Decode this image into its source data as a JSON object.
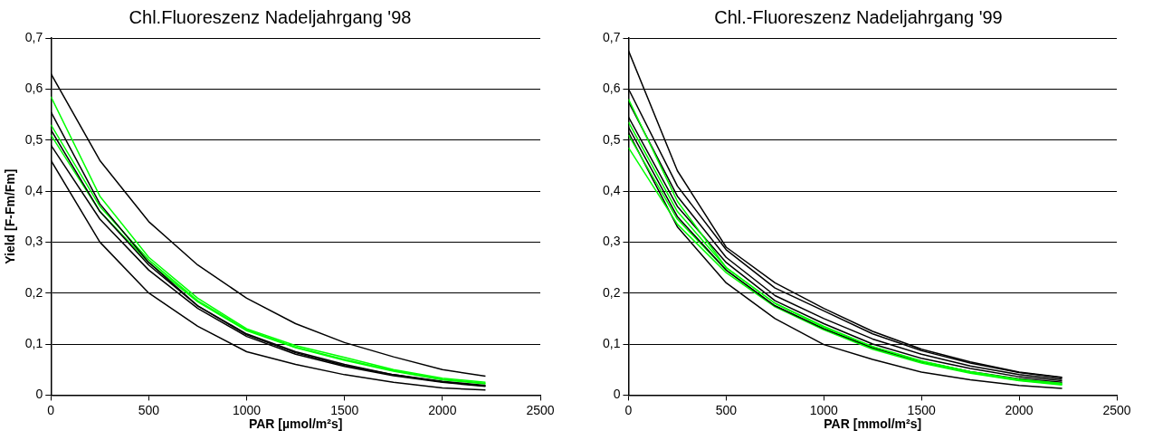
{
  "chart_data": [
    {
      "type": "line",
      "title": "Chl.Fluoreszenz Nadeljahrgang '98",
      "xlabel": "PAR [µmol/m²s]",
      "ylabel": "Yield [F-Fm/Fm]",
      "x": [
        0,
        250,
        500,
        750,
        1000,
        1250,
        1500,
        1750,
        2000,
        2220
      ],
      "xlim": [
        0,
        2500
      ],
      "xticks": [
        0,
        500,
        1000,
        1500,
        2000,
        2500
      ],
      "ylim": [
        0,
        0.7
      ],
      "yticks": [
        {
          "value": 0,
          "label": "0"
        },
        {
          "value": 0.1,
          "label": "0,1"
        },
        {
          "value": 0.2,
          "label": "0,2"
        },
        {
          "value": 0.3,
          "label": "0,3"
        },
        {
          "value": 0.4,
          "label": "0,4"
        },
        {
          "value": 0.5,
          "label": "0,5"
        },
        {
          "value": 0.6,
          "label": "0,6"
        },
        {
          "value": 0.7,
          "label": "0,7"
        }
      ],
      "grid": "y",
      "legend": false,
      "line_style": "solid",
      "series": [
        {
          "color": "#000000",
          "values": [
            0.63,
            0.46,
            0.34,
            0.255,
            0.19,
            0.14,
            0.103,
            0.075,
            0.05,
            0.037
          ]
        },
        {
          "color": "#00ff00",
          "values": [
            0.585,
            0.39,
            0.27,
            0.19,
            0.13,
            0.097,
            0.074,
            0.05,
            0.033,
            0.025
          ]
        },
        {
          "color": "#000000",
          "values": [
            0.555,
            0.375,
            0.26,
            0.175,
            0.12,
            0.085,
            0.06,
            0.04,
            0.027,
            0.019
          ]
        },
        {
          "color": "#00ff00",
          "values": [
            0.53,
            0.37,
            0.265,
            0.185,
            0.128,
            0.094,
            0.07,
            0.048,
            0.031,
            0.023
          ]
        },
        {
          "color": "#000000",
          "values": [
            0.52,
            0.36,
            0.255,
            0.175,
            0.118,
            0.083,
            0.058,
            0.04,
            0.026,
            0.018
          ]
        },
        {
          "color": "#00ff00",
          "values": [
            0.51,
            0.36,
            0.26,
            0.183,
            0.126,
            0.093,
            0.068,
            0.047,
            0.03,
            0.022
          ]
        },
        {
          "color": "#000000",
          "values": [
            0.49,
            0.345,
            0.245,
            0.17,
            0.115,
            0.08,
            0.056,
            0.038,
            0.025,
            0.017
          ]
        },
        {
          "color": "#000000",
          "values": [
            0.46,
            0.3,
            0.2,
            0.135,
            0.085,
            0.06,
            0.04,
            0.025,
            0.014,
            0.01
          ]
        }
      ]
    },
    {
      "type": "line",
      "title": "Chl.-Fluoreszenz Nadeljahrgang '99",
      "xlabel": "PAR [mmol/m²s]",
      "x": [
        0,
        250,
        500,
        750,
        1000,
        1250,
        1500,
        1750,
        2000,
        2220
      ],
      "xlim": [
        0,
        2500
      ],
      "xticks": [
        0,
        500,
        1000,
        1500,
        2000,
        2500
      ],
      "ylim": [
        0,
        0.7
      ],
      "yticks": [
        {
          "value": 0,
          "label": "0"
        },
        {
          "value": 0.1,
          "label": "0,1"
        },
        {
          "value": 0.2,
          "label": "0,2"
        },
        {
          "value": 0.3,
          "label": "0,3"
        },
        {
          "value": 0.4,
          "label": "0,4"
        },
        {
          "value": 0.5,
          "label": "0,5"
        },
        {
          "value": 0.6,
          "label": "0,6"
        },
        {
          "value": 0.7,
          "label": "0,7"
        }
      ],
      "grid": "y",
      "legend": false,
      "line_style": "solid",
      "series": [
        {
          "color": "#000000",
          "values": [
            0.675,
            0.44,
            0.29,
            0.22,
            0.17,
            0.125,
            0.09,
            0.065,
            0.045,
            0.035
          ]
        },
        {
          "color": "#000000",
          "values": [
            0.6,
            0.41,
            0.285,
            0.21,
            0.165,
            0.12,
            0.087,
            0.063,
            0.044,
            0.034
          ]
        },
        {
          "color": "#00ff00",
          "values": [
            0.58,
            0.38,
            0.25,
            0.18,
            0.135,
            0.095,
            0.066,
            0.045,
            0.03,
            0.022
          ]
        },
        {
          "color": "#000000",
          "values": [
            0.575,
            0.39,
            0.27,
            0.195,
            0.15,
            0.11,
            0.08,
            0.057,
            0.04,
            0.031
          ]
        },
        {
          "color": "#000000",
          "values": [
            0.545,
            0.37,
            0.26,
            0.185,
            0.14,
            0.1,
            0.072,
            0.052,
            0.036,
            0.028
          ]
        },
        {
          "color": "#00ff00",
          "values": [
            0.535,
            0.36,
            0.25,
            0.18,
            0.133,
            0.095,
            0.067,
            0.046,
            0.031,
            0.023
          ]
        },
        {
          "color": "#000000",
          "values": [
            0.525,
            0.35,
            0.245,
            0.175,
            0.13,
            0.093,
            0.066,
            0.046,
            0.032,
            0.025
          ]
        },
        {
          "color": "#00ff00",
          "values": [
            0.51,
            0.345,
            0.245,
            0.175,
            0.13,
            0.092,
            0.064,
            0.044,
            0.029,
            0.021
          ]
        },
        {
          "color": "#00ff00",
          "values": [
            0.485,
            0.335,
            0.24,
            0.173,
            0.128,
            0.09,
            0.063,
            0.043,
            0.028,
            0.02
          ]
        },
        {
          "color": "#000000",
          "values": [
            0.515,
            0.33,
            0.22,
            0.15,
            0.099,
            0.07,
            0.045,
            0.03,
            0.019,
            0.013
          ]
        }
      ]
    }
  ]
}
